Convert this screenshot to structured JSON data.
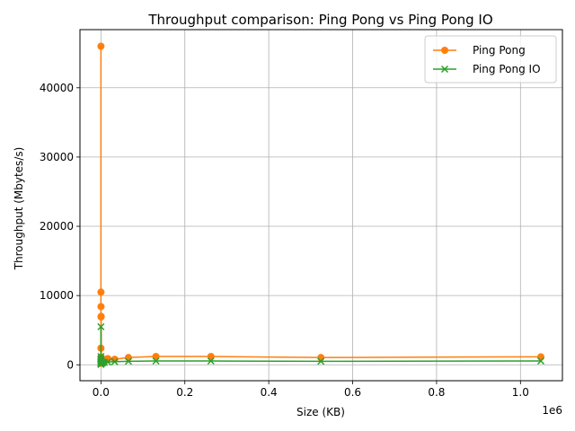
{
  "chart_data": {
    "type": "line",
    "title": "Throughput comparison: Ping Pong vs Ping Pong IO",
    "xlabel": "Size (KB)",
    "ylabel": "Throughput (Mbytes/s)",
    "x_offset_label": "1e6",
    "xlim": [
      -50000,
      1100000
    ],
    "ylim": [
      -2300,
      48400
    ],
    "x_ticks": [
      {
        "value": 0,
        "label": "0.0"
      },
      {
        "value": 200000,
        "label": "0.2"
      },
      {
        "value": 400000,
        "label": "0.4"
      },
      {
        "value": 600000,
        "label": "0.6"
      },
      {
        "value": 800000,
        "label": "0.8"
      },
      {
        "value": 1000000,
        "label": "1.0"
      }
    ],
    "y_ticks": [
      {
        "value": 0,
        "label": "0"
      },
      {
        "value": 10000,
        "label": "10000"
      },
      {
        "value": 20000,
        "label": "20000"
      },
      {
        "value": 30000,
        "label": "30000"
      },
      {
        "value": 40000,
        "label": "40000"
      }
    ],
    "grid": true,
    "legend_position": "top-right",
    "series": [
      {
        "name": "Ping Pong",
        "color": "#ff7f0e",
        "marker": "circle",
        "x": [
          1,
          2,
          4,
          8,
          16,
          32,
          64,
          128,
          256,
          512,
          1024,
          2048,
          4096,
          8192,
          16384,
          32768,
          65536,
          131072,
          262144,
          524288,
          1048576
        ],
        "y": [
          200,
          400,
          800,
          1100,
          2400,
          46000,
          10500,
          8400,
          6900,
          7000,
          1000,
          600,
          700,
          750,
          900,
          800,
          1050,
          1200,
          1200,
          1050,
          1150
        ]
      },
      {
        "name": "Ping Pong IO",
        "color": "#2ca02c",
        "marker": "x",
        "x": [
          1,
          2,
          4,
          8,
          16,
          32,
          64,
          128,
          256,
          512,
          1024,
          2048,
          4096,
          8192,
          16384,
          32768,
          65536,
          131072,
          262144,
          524288,
          1048576
        ],
        "y": [
          50,
          100,
          150,
          200,
          300,
          5500,
          1200,
          900,
          700,
          500,
          300,
          250,
          300,
          350,
          400,
          450,
          500,
          550,
          550,
          500,
          550
        ]
      }
    ]
  }
}
